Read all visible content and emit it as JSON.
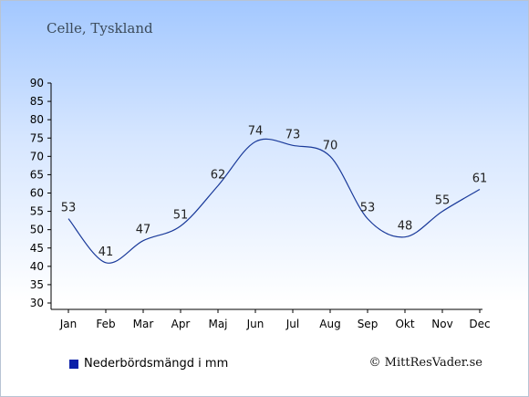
{
  "chart_data": {
    "type": "line",
    "title": "Celle, Tyskland",
    "categories": [
      "Jan",
      "Feb",
      "Mar",
      "Apr",
      "Maj",
      "Jun",
      "Jul",
      "Aug",
      "Sep",
      "Okt",
      "Nov",
      "Dec"
    ],
    "series": [
      {
        "name": "Nederbördsmängd i mm",
        "values": [
          53,
          41,
          47,
          51,
          62,
          74,
          73,
          70,
          53,
          48,
          55,
          61
        ],
        "color": "#0a1fa8"
      }
    ],
    "ylim": [
      30,
      90
    ],
    "yticks": [
      30,
      35,
      40,
      45,
      50,
      55,
      60,
      65,
      70,
      75,
      80,
      85,
      90
    ],
    "grid": false,
    "legend": "bottom-left",
    "line_color": "#1a3a9a"
  },
  "copyright": "© MittResVader.se"
}
